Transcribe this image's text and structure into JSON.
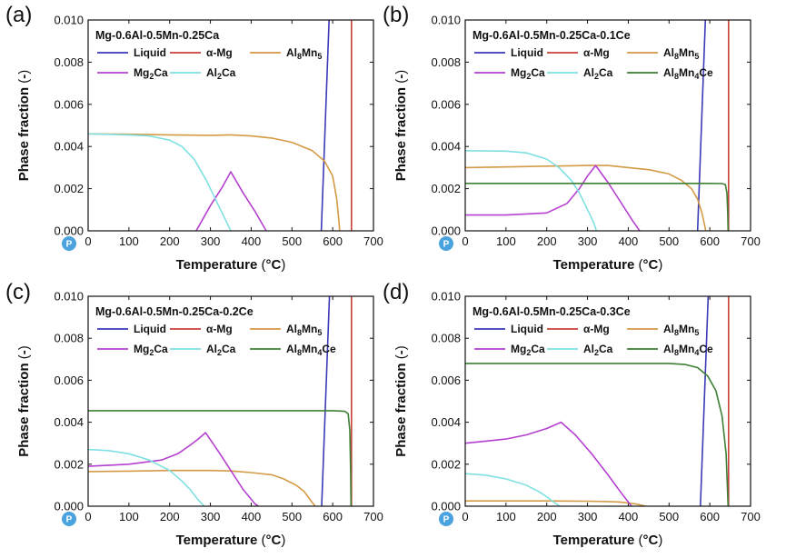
{
  "figure": {
    "series_styles": [
      {
        "name": "Liquid",
        "legend_html": "Liquid",
        "color": "#3a3ab8"
      },
      {
        "name": "α-Mg",
        "legend_html": "α-Mg",
        "color": "#c8403a"
      },
      {
        "name": "Al8Mn5",
        "legend_html": "Al|8|Mn|5",
        "color": "#d49a46"
      },
      {
        "name": "Mg2Ca",
        "legend_html": "Mg|2|Ca",
        "color": "#b540d0"
      },
      {
        "name": "Al2Ca",
        "legend_html": "Al|2|Ca",
        "color": "#7fe0e2"
      },
      {
        "name": "Al8Mn4Ce",
        "legend_html": "Al|8|Mn|4|Ce",
        "color": "#3d7f34"
      }
    ],
    "watermark": "P"
  },
  "chart_data": [
    {
      "type": "line",
      "panel_label": "(a)",
      "title": "Mg-0.6Al-0.5Mn-0.25Ca",
      "xlabel": "Temperature (°C)",
      "ylabel": "Phase fraction (-)",
      "xlim": [
        0,
        700
      ],
      "ylim": [
        0,
        0.01
      ],
      "xticks": [
        "0",
        "100",
        "200",
        "300",
        "400",
        "500",
        "600",
        "700"
      ],
      "yticks": [
        "0.000",
        "0.002",
        "0.004",
        "0.006",
        "0.008",
        "0.010"
      ],
      "series": [
        {
          "name": "Liquid",
          "x": [
            572,
            592
          ],
          "y": [
            0,
            0.0105
          ]
        },
        {
          "name": "α-Mg",
          "x": [
            646,
            646
          ],
          "y": [
            0,
            0.0105
          ]
        },
        {
          "name": "Al8Mn5",
          "x": [
            0,
            100,
            200,
            300,
            350,
            400,
            450,
            500,
            550,
            580,
            600,
            610,
            615,
            617
          ],
          "y": [
            0.0046,
            0.00458,
            0.00455,
            0.00453,
            0.00455,
            0.0045,
            0.0044,
            0.0042,
            0.0038,
            0.0033,
            0.0026,
            0.0015,
            0.0005,
            0
          ]
        },
        {
          "name": "Mg2Ca",
          "x": [
            265,
            300,
            330,
            350,
            380,
            410,
            437
          ],
          "y": [
            0,
            0.0012,
            0.0021,
            0.0028,
            0.0018,
            0.0009,
            0
          ]
        },
        {
          "name": "Al2Ca",
          "x": [
            0,
            100,
            150,
            200,
            230,
            260,
            290,
            320,
            340,
            350
          ],
          "y": [
            0.0046,
            0.00455,
            0.0045,
            0.0043,
            0.004,
            0.0034,
            0.0024,
            0.0012,
            0.0004,
            0
          ]
        }
      ]
    },
    {
      "type": "line",
      "panel_label": "(b)",
      "title": "Mg-0.6Al-0.5Mn-0.25Ca-0.1Ce",
      "xlabel": "Temperature (°C)",
      "ylabel": "Phase fraction (-)",
      "xlim": [
        0,
        700
      ],
      "ylim": [
        0,
        0.01
      ],
      "xticks": [
        "0",
        "100",
        "200",
        "300",
        "400",
        "500",
        "600",
        "700"
      ],
      "yticks": [
        "0.000",
        "0.002",
        "0.004",
        "0.006",
        "0.008",
        "0.010"
      ],
      "series": [
        {
          "name": "Liquid",
          "x": [
            570,
            590
          ],
          "y": [
            0,
            0.0105
          ]
        },
        {
          "name": "α-Mg",
          "x": [
            646,
            646
          ],
          "y": [
            0,
            0.0105
          ]
        },
        {
          "name": "Al8Mn5",
          "x": [
            0,
            100,
            200,
            300,
            350,
            400,
            450,
            500,
            530,
            555,
            570,
            580,
            587,
            590
          ],
          "y": [
            0.003,
            0.00303,
            0.00307,
            0.0031,
            0.0031,
            0.003,
            0.0029,
            0.0027,
            0.0024,
            0.002,
            0.0015,
            0.0009,
            0.0003,
            0
          ]
        },
        {
          "name": "Mg2Ca",
          "x": [
            0,
            100,
            200,
            250,
            280,
            300,
            320,
            350,
            380,
            410,
            428
          ],
          "y": [
            0.00075,
            0.00075,
            0.00085,
            0.0013,
            0.002,
            0.0026,
            0.0031,
            0.0023,
            0.0014,
            0.0005,
            0
          ]
        },
        {
          "name": "Al2Ca",
          "x": [
            0,
            100,
            150,
            200,
            230,
            260,
            280,
            300,
            315,
            322
          ],
          "y": [
            0.0038,
            0.00378,
            0.0037,
            0.0034,
            0.003,
            0.0024,
            0.0018,
            0.001,
            0.0004,
            0
          ]
        },
        {
          "name": "Al8Mn4Ce",
          "x": [
            0,
            300,
            600,
            630,
            638,
            642,
            644,
            645
          ],
          "y": [
            0.00225,
            0.00225,
            0.00225,
            0.00224,
            0.0022,
            0.0018,
            0.0008,
            0
          ]
        }
      ]
    },
    {
      "type": "line",
      "panel_label": "(c)",
      "title": "Mg-0.6Al-0.5Mn-0.25Ca-0.2Ce",
      "xlabel": "Temperature (°C)",
      "ylabel": "Phase fraction (-)",
      "xlim": [
        0,
        700
      ],
      "ylim": [
        0,
        0.01
      ],
      "xticks": [
        "0",
        "100",
        "200",
        "300",
        "400",
        "500",
        "600",
        "700"
      ],
      "yticks": [
        "0.000",
        "0.002",
        "0.004",
        "0.006",
        "0.008",
        "0.010"
      ],
      "series": [
        {
          "name": "Liquid",
          "x": [
            573,
            593
          ],
          "y": [
            0,
            0.0105
          ]
        },
        {
          "name": "α-Mg",
          "x": [
            646,
            646
          ],
          "y": [
            0,
            0.0105
          ]
        },
        {
          "name": "Al8Mn5",
          "x": [
            0,
            100,
            200,
            300,
            350,
            400,
            450,
            480,
            510,
            530,
            545,
            553,
            557
          ],
          "y": [
            0.00165,
            0.00167,
            0.0017,
            0.0017,
            0.00168,
            0.0016,
            0.0015,
            0.0013,
            0.001,
            0.0007,
            0.0003,
            0.0001,
            0
          ]
        },
        {
          "name": "Mg2Ca",
          "x": [
            0,
            100,
            180,
            220,
            250,
            270,
            288,
            320,
            350,
            380,
            410,
            418
          ],
          "y": [
            0.0019,
            0.002,
            0.0022,
            0.0025,
            0.0029,
            0.0032,
            0.0035,
            0.0026,
            0.0017,
            0.0008,
            0.0001,
            0
          ]
        },
        {
          "name": "Al2Ca",
          "x": [
            0,
            50,
            100,
            150,
            200,
            230,
            250,
            270,
            285
          ],
          "y": [
            0.0027,
            0.00265,
            0.0025,
            0.0022,
            0.0017,
            0.0012,
            0.0008,
            0.0003,
            0
          ]
        },
        {
          "name": "Al8Mn4Ce",
          "x": [
            0,
            300,
            600,
            630,
            638,
            642,
            644,
            645
          ],
          "y": [
            0.00455,
            0.00455,
            0.00455,
            0.00452,
            0.0044,
            0.0036,
            0.0016,
            0
          ]
        }
      ]
    },
    {
      "type": "line",
      "panel_label": "(d)",
      "title": "Mg-0.6Al-0.5Mn-0.25Ca-0.3Ce",
      "xlabel": "Temperature (°C)",
      "ylabel": "Phase fraction (-)",
      "xlim": [
        0,
        700
      ],
      "ylim": [
        0,
        0.01
      ],
      "xticks": [
        "0",
        "100",
        "200",
        "300",
        "400",
        "500",
        "600",
        "700"
      ],
      "yticks": [
        "0.000",
        "0.002",
        "0.004",
        "0.006",
        "0.008",
        "0.010"
      ],
      "series": [
        {
          "name": "Liquid",
          "x": [
            577,
            597
          ],
          "y": [
            0,
            0.0105
          ]
        },
        {
          "name": "α-Mg",
          "x": [
            646,
            646
          ],
          "y": [
            0,
            0.0105
          ]
        },
        {
          "name": "Al8Mn5",
          "x": [
            0,
            100,
            200,
            300,
            350,
            380,
            400,
            420,
            435,
            442
          ],
          "y": [
            0.00025,
            0.00025,
            0.00025,
            0.00024,
            0.00022,
            0.0002,
            0.00015,
            0.0001,
            4e-05,
            0
          ]
        },
        {
          "name": "Mg2Ca",
          "x": [
            0,
            50,
            100,
            150,
            200,
            235,
            270,
            310,
            350,
            380,
            400,
            408
          ],
          "y": [
            0.003,
            0.0031,
            0.0032,
            0.0034,
            0.0037,
            0.004,
            0.0034,
            0.0025,
            0.0015,
            0.0007,
            0.0002,
            0
          ]
        },
        {
          "name": "Al2Ca",
          "x": [
            0,
            50,
            100,
            150,
            180,
            200,
            220,
            232
          ],
          "y": [
            0.00155,
            0.00148,
            0.0013,
            0.001,
            0.0007,
            0.00045,
            0.00015,
            0
          ]
        },
        {
          "name": "Al8Mn4Ce",
          "x": [
            0,
            300,
            500,
            540,
            570,
            595,
            615,
            630,
            640,
            645
          ],
          "y": [
            0.0068,
            0.0068,
            0.0068,
            0.00675,
            0.0066,
            0.0062,
            0.0055,
            0.0043,
            0.0025,
            0
          ]
        }
      ]
    }
  ]
}
